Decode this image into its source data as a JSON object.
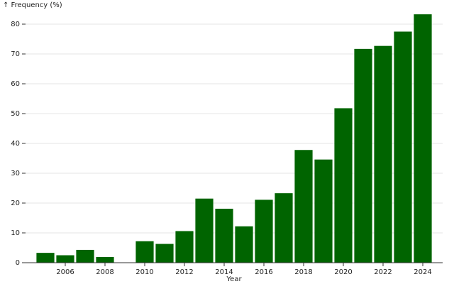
{
  "chart_data": {
    "type": "bar",
    "y_label": "↑ Frequency (%)",
    "x_label": "Year",
    "x": [
      2005,
      2006,
      2007,
      2008,
      2009,
      2010,
      2011,
      2012,
      2013,
      2014,
      2015,
      2016,
      2017,
      2018,
      2019,
      2020,
      2021,
      2022,
      2023,
      2024
    ],
    "values": [
      3.3,
      2.5,
      4.3,
      1.9,
      null,
      7.2,
      6.3,
      10.6,
      21.5,
      18.1,
      12.2,
      21.1,
      23.3,
      37.8,
      34.6,
      51.8,
      71.7,
      72.7,
      77.5,
      83.3
    ],
    "color": "#006400",
    "xlim": [
      2004,
      2025
    ],
    "xticks": [
      2006,
      2008,
      2010,
      2012,
      2014,
      2016,
      2018,
      2020,
      2022,
      2024
    ],
    "ylim": [
      0,
      86
    ],
    "yticks": [
      0,
      10,
      20,
      30,
      40,
      50,
      60,
      70,
      80
    ],
    "grid": true
  }
}
